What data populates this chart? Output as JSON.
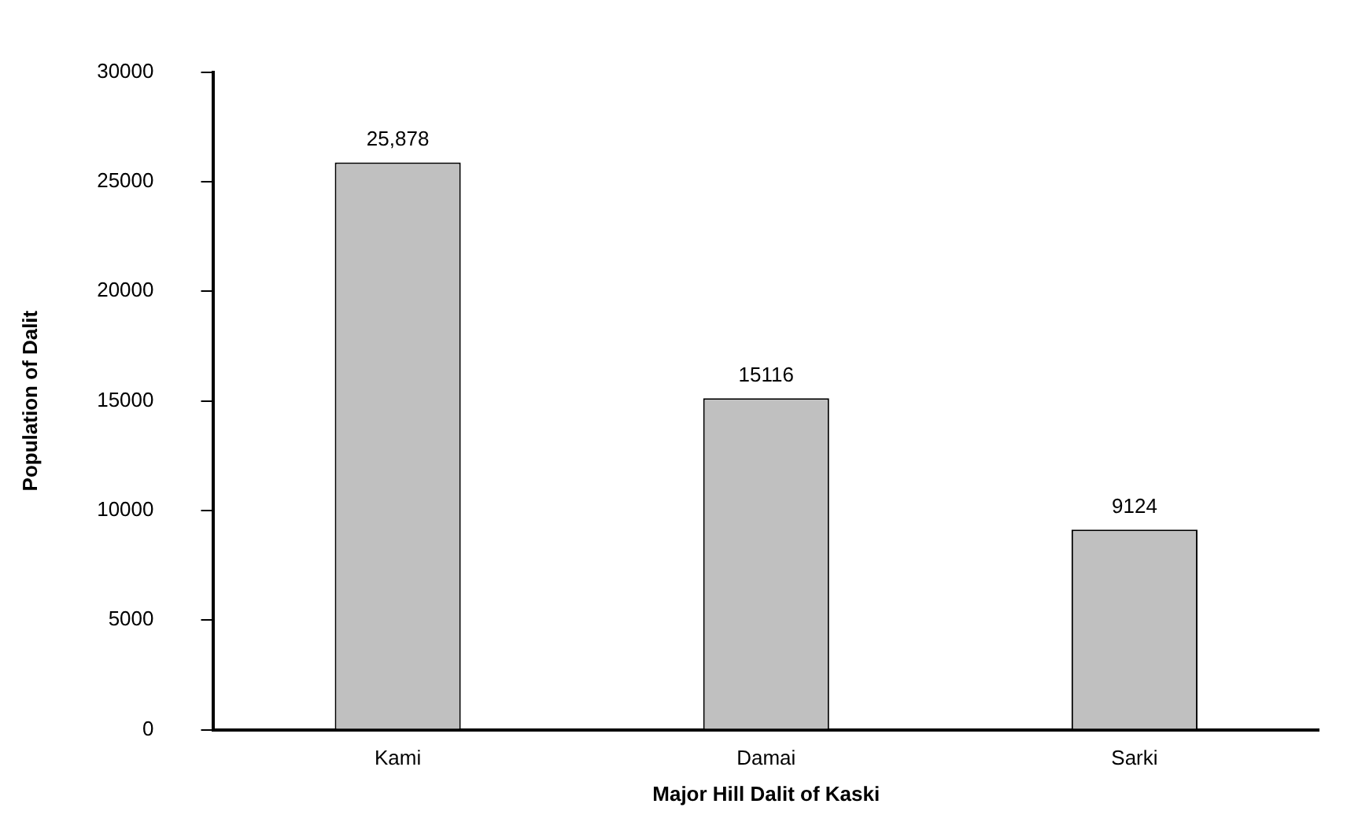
{
  "chart_data": {
    "type": "bar",
    "xlabel": "Major Hill Dalit of Kaski",
    "ylabel": "Population of Dalit",
    "categories": [
      "Kami",
      "Damai",
      "Sarki"
    ],
    "values": [
      25878,
      15116,
      9124
    ],
    "value_labels": [
      "25,878",
      "15116",
      "9124"
    ],
    "color": "#c0c0c0",
    "ylim": [
      0,
      30000
    ],
    "yticks": [
      0,
      5000,
      10000,
      15000,
      20000,
      25000,
      30000
    ],
    "grid": false,
    "legend": false
  }
}
